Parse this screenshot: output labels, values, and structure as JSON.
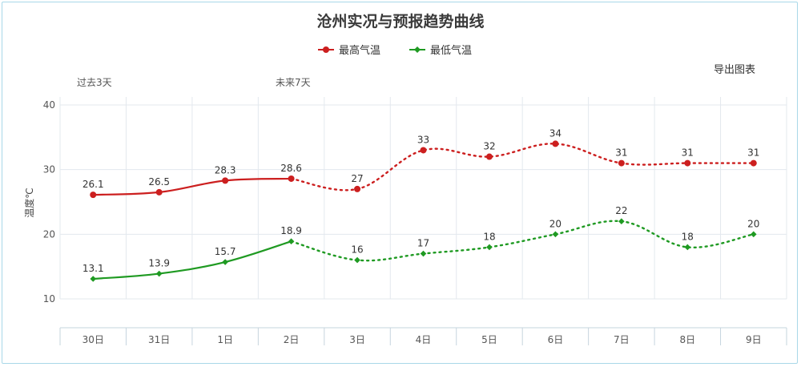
{
  "title": "沧州实况与预报趋势曲线",
  "export_label": "导出图表",
  "periods": {
    "past": "过去3天",
    "future": "未来7天"
  },
  "colors": {
    "high": "#cc1f1f",
    "low": "#1f9a22",
    "grid": "#e3e8ee",
    "axis": "#c6d4de"
  },
  "chart_data": {
    "type": "line",
    "categories": [
      "30日",
      "31日",
      "1日",
      "2日",
      "3日",
      "4日",
      "5日",
      "6日",
      "7日",
      "8日",
      "9日"
    ],
    "ylabel": "温度℃",
    "ylim": [
      10,
      40
    ],
    "yticks": [
      10,
      20,
      30,
      40
    ],
    "observed_count": 4,
    "legend_position": "top-center",
    "series": [
      {
        "name": "最高气温",
        "key": "high",
        "values": [
          26.1,
          26.5,
          28.3,
          28.6,
          27,
          33,
          32,
          34,
          31,
          31,
          31
        ],
        "labels": [
          "26.1",
          "26.5",
          "28.3",
          "28.6",
          "27",
          "33",
          "32",
          "34",
          "31",
          "31",
          "31"
        ]
      },
      {
        "name": "最低气温",
        "key": "low",
        "values": [
          13.1,
          13.9,
          15.7,
          18.9,
          16,
          17,
          18,
          20,
          22,
          18,
          20
        ],
        "labels": [
          "13.1",
          "13.9",
          "15.7",
          "18.9",
          "16",
          "17",
          "18",
          "20",
          "22",
          "18",
          "20"
        ]
      }
    ]
  }
}
